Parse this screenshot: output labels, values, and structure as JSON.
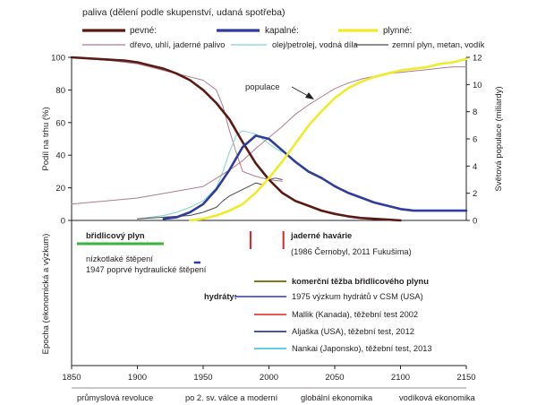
{
  "legend": {
    "heading": "paliva (dělení podle skupenství, udaná spotřeba)",
    "groups": [
      {
        "label": "pevné:",
        "color": "#5a1a12"
      },
      {
        "label": "kapalné:",
        "color": "#2e3c9c"
      },
      {
        "label": "plynné:",
        "color": "#f0ea2c"
      }
    ],
    "sub": [
      {
        "label": "dřevo, uhlí, jaderné palivo",
        "color": "#b07a94"
      },
      {
        "label": "olej/petrolej, vodná díla",
        "color": "#7fd6c8"
      },
      {
        "label": "zemní plyn, metan, vodík",
        "color": "#4a4a4a"
      }
    ]
  },
  "chart_data": [
    {
      "type": "line",
      "ylabel": "Podíl na trhu (%)",
      "y2label": "Světová populace (miliardy)",
      "xlim": [
        1850,
        2150
      ],
      "ylim": [
        0,
        100
      ],
      "y2lim": [
        0,
        12
      ],
      "yticks": [
        "0",
        "20",
        "40",
        "60",
        "80",
        "100"
      ],
      "y2ticks": [
        "0",
        "2",
        "4",
        "6",
        "8",
        "10",
        "12"
      ],
      "annotation": "populace",
      "series": [
        {
          "name": "pevné:",
          "color": "#5a1a12",
          "width": 2.6,
          "x": [
            1850,
            1870,
            1890,
            1900,
            1910,
            1920,
            1930,
            1940,
            1950,
            1960,
            1970,
            1980,
            1990,
            2000,
            2010,
            2020,
            2030,
            2040,
            2050,
            2060,
            2070,
            2080,
            2090,
            2100
          ],
          "y": [
            100,
            99,
            98,
            97,
            95,
            93,
            90,
            86,
            80,
            72,
            62,
            48,
            35,
            25,
            17,
            12,
            9,
            6,
            4,
            2.5,
            1.5,
            1,
            0.5,
            0
          ]
        },
        {
          "name": "kapalné:",
          "color": "#2e3c9c",
          "width": 2.6,
          "x": [
            1920,
            1930,
            1940,
            1950,
            1960,
            1970,
            1980,
            1990,
            2000,
            2010,
            2020,
            2030,
            2040,
            2050,
            2060,
            2070,
            2080,
            2090,
            2100,
            2110,
            2120,
            2130,
            2140,
            2150
          ],
          "y": [
            1,
            2,
            5,
            10,
            19,
            31,
            45,
            52,
            50,
            43,
            36,
            30,
            26,
            21,
            17,
            14,
            11,
            9,
            7,
            6,
            6,
            6,
            6,
            6
          ]
        },
        {
          "name": "plynné:",
          "color": "#f0ea2c",
          "width": 2.6,
          "x": [
            1940,
            1950,
            1960,
            1970,
            1980,
            1990,
            2000,
            2010,
            2020,
            2030,
            2040,
            2050,
            2060,
            2070,
            2080,
            2090,
            2100,
            2110,
            2120,
            2130,
            2140,
            2150
          ],
          "y": [
            0,
            1,
            3,
            6,
            10,
            17,
            26,
            36,
            47,
            58,
            67,
            75,
            81,
            85,
            88,
            90,
            92,
            93,
            94,
            96,
            97,
            99
          ]
        },
        {
          "name": "dřevo, uhlí, jaderné palivo",
          "color": "#b07a94",
          "width": 1,
          "x": [
            1850,
            1880,
            1900,
            1910,
            1920,
            1930,
            1940,
            1950,
            1960,
            1965,
            1970,
            1975,
            1980,
            1990,
            2000,
            2010
          ],
          "y": [
            100,
            98,
            96,
            94,
            92,
            90,
            88,
            86,
            80,
            70,
            55,
            42,
            30,
            27,
            25,
            24
          ]
        },
        {
          "name": "olej/petrolej, vodná díla",
          "color": "#7fd6c8",
          "width": 1,
          "x": [
            1900,
            1910,
            1920,
            1930,
            1940,
            1950,
            1960,
            1965,
            1970,
            1975,
            1980,
            1985,
            1990,
            1995,
            2000,
            2005,
            2010
          ],
          "y": [
            1,
            2,
            3,
            5,
            8,
            12,
            20,
            30,
            42,
            52,
            55,
            54,
            53,
            50,
            47,
            44,
            42
          ]
        },
        {
          "name": "zemní plyn, metan, vodík",
          "color": "#4a4a4a",
          "width": 1,
          "x": [
            1900,
            1920,
            1940,
            1950,
            1960,
            1965,
            1970,
            1975,
            1980,
            1985,
            1990,
            1995,
            2000,
            2005,
            2010
          ],
          "y": [
            1,
            2,
            3,
            5,
            8,
            12,
            15,
            17,
            19,
            21,
            23,
            22,
            25,
            26,
            25
          ]
        },
        {
          "name": "",
          "axis": "y2",
          "color": "#b07a94",
          "width": 1,
          "x": [
            1850,
            1900,
            1950,
            1970,
            1980,
            1990,
            2000,
            2010,
            2020,
            2030,
            2040,
            2050,
            2060,
            2070,
            2080,
            2090,
            2100,
            2110,
            2120,
            2130,
            2140,
            2150
          ],
          "y": [
            1.2,
            1.65,
            2.5,
            3.7,
            4.4,
            5.3,
            6.1,
            6.9,
            7.8,
            8.5,
            9.1,
            9.7,
            10.1,
            10.4,
            10.6,
            10.8,
            10.9,
            11,
            11.1,
            11.2,
            11.3,
            11.3
          ]
        }
      ]
    },
    {
      "type": "timeline",
      "ylabel": "Epocha (ekonomická a výzkum)",
      "xlim": [
        1850,
        2150
      ],
      "xticks": [
        "1850",
        "1900",
        "1950",
        "2000",
        "2050",
        "2100",
        "2150"
      ],
      "epochs": [
        "průmyslová revoluce",
        "po 2. sv. válce a moderní",
        "globální ekonomika",
        "vodíková ekonomika"
      ],
      "bars": [
        {
          "label": "břidlicový plyn",
          "color": "#3cb043",
          "x": [
            1854,
            1920
          ]
        },
        {
          "label": "1947 poprvé hydraulické štěpení",
          "color": "#2e3c9c",
          "x": [
            1943,
            1948
          ]
        },
        {
          "label": "",
          "color": "#e02020",
          "x": [
            1986,
            1986
          ]
        },
        {
          "label": "",
          "color": "#e02020",
          "x": [
            2011,
            2011
          ]
        }
      ],
      "texts": {
        "shale": "břidlicový plyn",
        "lowfrac": "nízkotlaké štěpení",
        "frac1947": "1947 poprvé hydraulické štěpení",
        "nuclear": "jaderné havárie",
        "nuclear_sub": "(1986 Černobyl, 2011 Fukušima)",
        "shale_commercial": "komerční těžba břidlicového plynu",
        "hydrates": "hydráty:"
      },
      "hydrate_items": [
        {
          "label": "1975 výzkum hydrátů v CSM (USA)",
          "color": "#2e3c9c"
        },
        {
          "label": "Mallik (Kanada), těžební test 2002",
          "color": "#e02020"
        },
        {
          "label": "Aljaška (USA), těžební test, 2012",
          "color": "#2e3c9c"
        },
        {
          "label": "Nankai (Japonsko), těžební test, 2013",
          "color": "#30c0c8"
        }
      ],
      "shale_commercial_color": "#7a7a1a"
    }
  ]
}
